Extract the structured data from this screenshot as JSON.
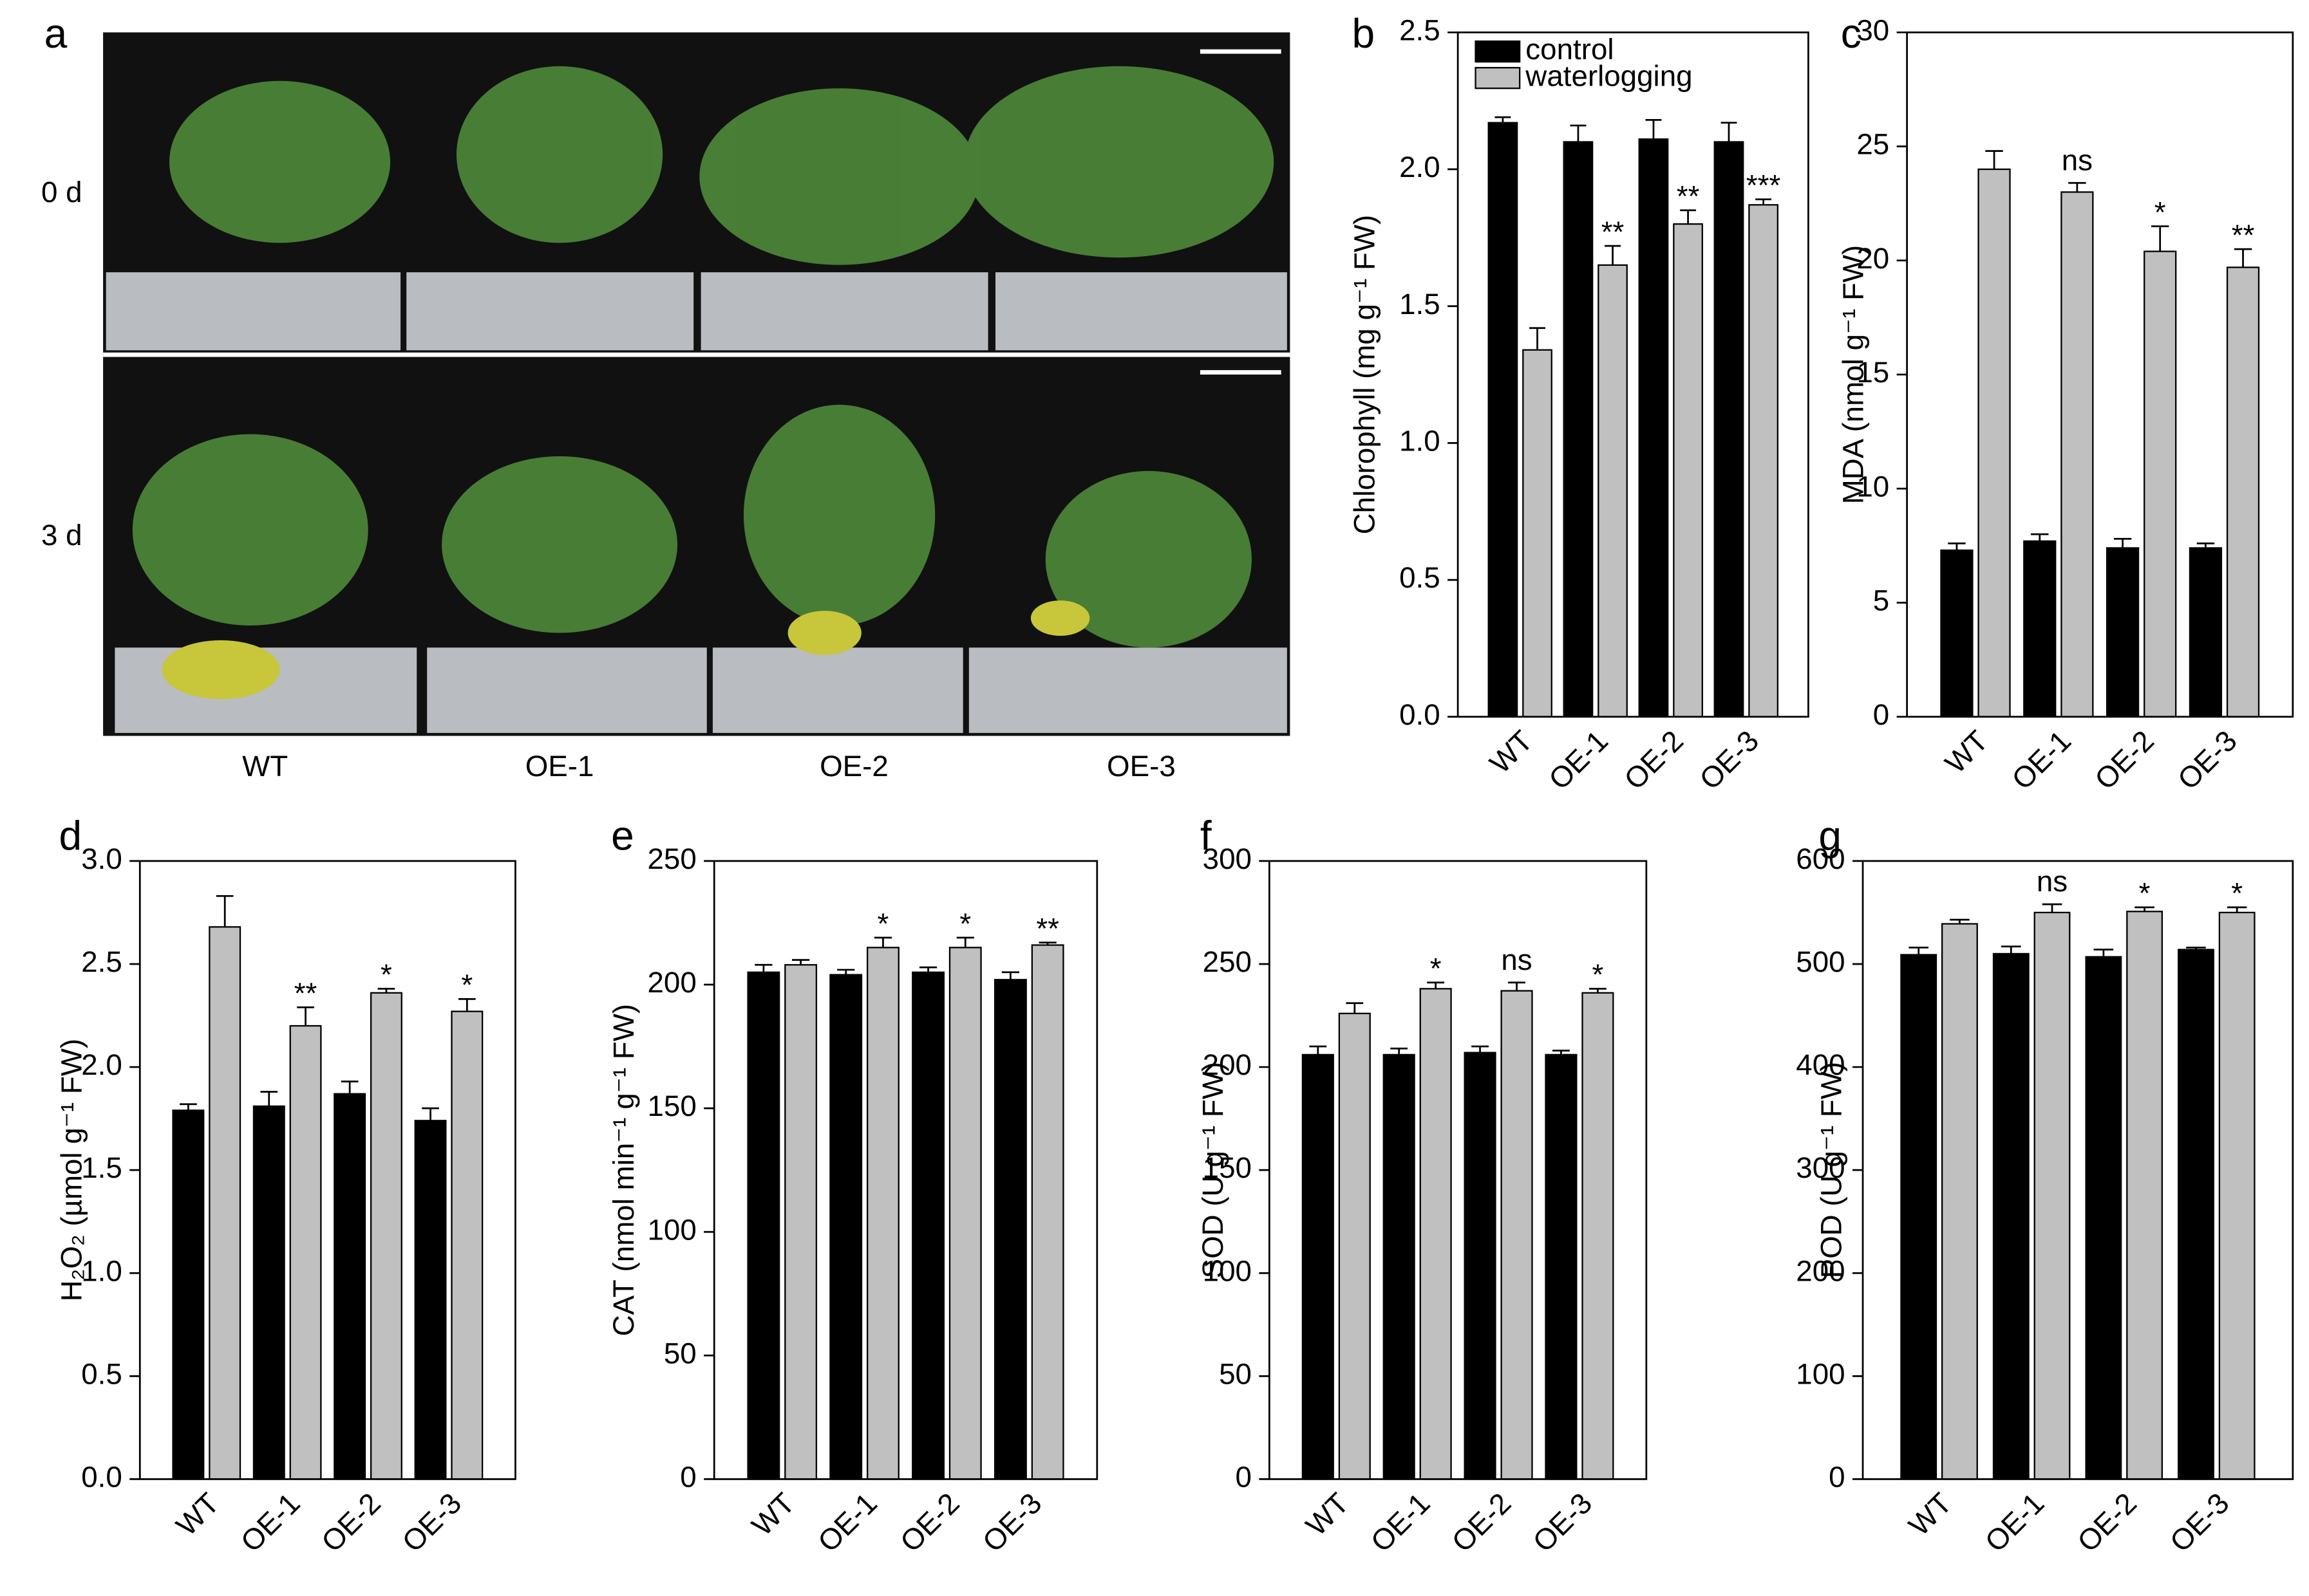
{
  "photo_panel": {
    "label": "a",
    "rows": [
      "0 d",
      "3 d"
    ],
    "columns": [
      "WT",
      "OE-1",
      "OE-2",
      "OE-3"
    ]
  },
  "chart_data": [
    {
      "type": "bar",
      "panel": "b",
      "y_label": "Chlorophyll (mg g⁻¹ FW)",
      "categories": [
        "WT",
        "OE-1",
        "OE-2",
        "OE-3"
      ],
      "series": [
        {
          "name": "control",
          "color": "#000000",
          "values": [
            2.17,
            2.1,
            2.11,
            2.1
          ],
          "errors": [
            0.02,
            0.06,
            0.07,
            0.07
          ]
        },
        {
          "name": "waterlogging",
          "color": "#c0c0c0",
          "values": [
            1.34,
            1.65,
            1.8,
            1.87
          ],
          "errors": [
            0.08,
            0.07,
            0.05,
            0.02
          ]
        }
      ],
      "significance": [
        null,
        "**",
        "**",
        "***"
      ],
      "legend": "upper left",
      "ylim": [
        0,
        2.5
      ],
      "yticks": [
        {
          "value": 0,
          "label": "0.0"
        },
        0.5,
        {
          "value": 1,
          "label": "1.0"
        },
        1.5,
        {
          "value": 2,
          "label": "2.0"
        },
        2.5
      ]
    },
    {
      "type": "bar",
      "panel": "c",
      "y_label": "MDA (nmol g⁻¹  FW)",
      "categories": [
        "WT",
        "OE-1",
        "OE-2",
        "OE-3"
      ],
      "series": [
        {
          "name": "control",
          "color": "#000000",
          "values": [
            7.3,
            7.7,
            7.4,
            7.4
          ],
          "errors": [
            0.3,
            0.3,
            0.4,
            0.2
          ]
        },
        {
          "name": "waterlogging",
          "color": "#c0c0c0",
          "values": [
            24.0,
            23.0,
            20.4,
            19.7
          ],
          "errors": [
            0.8,
            0.4,
            1.1,
            0.8
          ]
        }
      ],
      "significance": [
        null,
        "ns",
        "*",
        "**"
      ],
      "ylim": [
        0,
        30
      ],
      "yticks": [
        0,
        5,
        10,
        15,
        20,
        25,
        30
      ]
    },
    {
      "type": "bar",
      "panel": "d",
      "y_label": "H₂O₂ (µmol g⁻¹ FW)",
      "categories": [
        "WT",
        "OE-1",
        "OE-2",
        "OE-3"
      ],
      "series": [
        {
          "name": "control",
          "color": "#000000",
          "values": [
            1.79,
            1.81,
            1.87,
            1.74
          ],
          "errors": [
            0.03,
            0.07,
            0.06,
            0.06
          ]
        },
        {
          "name": "waterlogging",
          "color": "#c0c0c0",
          "values": [
            2.68,
            2.2,
            2.36,
            2.27
          ],
          "errors": [
            0.15,
            0.09,
            0.02,
            0.06
          ]
        }
      ],
      "significance": [
        null,
        "**",
        "*",
        "*"
      ],
      "ylim": [
        0,
        3
      ],
      "yticks": [
        {
          "value": 0,
          "label": "0.0"
        },
        0.5,
        {
          "value": 1,
          "label": "1.0"
        },
        1.5,
        {
          "value": 2,
          "label": "2.0"
        },
        2.5,
        {
          "value": 3,
          "label": "3.0"
        }
      ]
    },
    {
      "type": "bar",
      "panel": "e",
      "y_label": "CAT (nmol min⁻¹ g⁻¹ FW)",
      "categories": [
        "WT",
        "OE-1",
        "OE-2",
        "OE-3"
      ],
      "series": [
        {
          "name": "control",
          "color": "#000000",
          "values": [
            205,
            204,
            205,
            202
          ],
          "errors": [
            3,
            2,
            2,
            3
          ]
        },
        {
          "name": "waterlogging",
          "color": "#c0c0c0",
          "values": [
            208,
            215,
            215,
            216
          ],
          "errors": [
            2,
            4,
            4,
            1
          ]
        }
      ],
      "significance": [
        null,
        "*",
        "*",
        "**"
      ],
      "ylim": [
        0,
        250
      ],
      "yticks": [
        0,
        50,
        100,
        150,
        200,
        250
      ]
    },
    {
      "type": "bar",
      "panel": "f",
      "y_label": "SOD (U g⁻¹ FW)",
      "categories": [
        "WT",
        "OE-1",
        "OE-2",
        "OE-3"
      ],
      "series": [
        {
          "name": "control",
          "color": "#000000",
          "values": [
            206,
            206,
            207,
            206
          ],
          "errors": [
            4,
            3,
            3,
            2
          ]
        },
        {
          "name": "waterlogging",
          "color": "#c0c0c0",
          "values": [
            226,
            238,
            237,
            236
          ],
          "errors": [
            5,
            3,
            4,
            2
          ]
        }
      ],
      "significance": [
        null,
        "*",
        "ns",
        "*"
      ],
      "ylim": [
        0,
        300
      ],
      "yticks": [
        0,
        50,
        100,
        150,
        200,
        250,
        300
      ]
    },
    {
      "type": "bar",
      "panel": "g",
      "y_label": "POD (U g⁻¹ FW)",
      "categories": [
        "WT",
        "OE-1",
        "OE-2",
        "OE-3"
      ],
      "series": [
        {
          "name": "control",
          "color": "#000000",
          "values": [
            509,
            510,
            507,
            514
          ],
          "errors": [
            7,
            7,
            7,
            2
          ]
        },
        {
          "name": "waterlogging",
          "color": "#c0c0c0",
          "values": [
            539,
            550,
            551,
            550
          ],
          "errors": [
            4,
            8,
            4,
            5
          ]
        }
      ],
      "significance": [
        null,
        "ns",
        "*",
        "*"
      ],
      "ylim": [
        0,
        600
      ],
      "yticks": [
        0,
        100,
        200,
        300,
        400,
        500,
        600
      ]
    }
  ]
}
